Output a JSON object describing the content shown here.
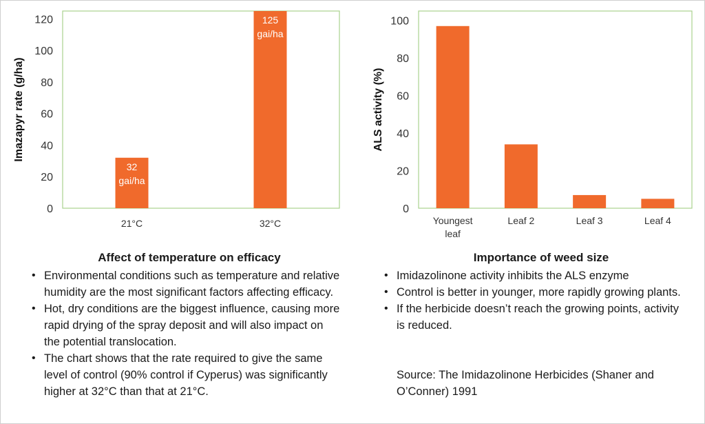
{
  "chart_data": [
    {
      "type": "bar",
      "categories": [
        "21°C",
        "32°C"
      ],
      "values": [
        32,
        125
      ],
      "data_labels": [
        [
          "32",
          "gai/ha"
        ],
        [
          "125",
          "gai/ha"
        ]
      ],
      "ylabel": "Imazapyr rate (g/ha)",
      "ylim": [
        0,
        125
      ],
      "yticks": [
        0,
        20,
        40,
        60,
        80,
        100,
        120
      ],
      "bar_color": "#f06a2c",
      "frame_color": "#a9d18e",
      "grid": false
    },
    {
      "type": "bar",
      "categories": [
        [
          "Youngest",
          "leaf"
        ],
        [
          "Leaf 2"
        ],
        [
          "Leaf 3"
        ],
        [
          "Leaf 4"
        ]
      ],
      "values": [
        97,
        34,
        7,
        5
      ],
      "ylabel": "ALS activity (%)",
      "ylim": [
        0,
        105
      ],
      "yticks": [
        0,
        20,
        40,
        60,
        80,
        100
      ],
      "bar_color": "#f06a2c",
      "frame_color": "#a9d18e",
      "grid": false
    }
  ],
  "left_panel": {
    "title": "Affect of temperature on efficacy",
    "bullets": [
      "Environmental conditions such as temperature and relative humidity are the most significant factors affecting efficacy.",
      "Hot, dry conditions are the biggest influence, causing more rapid drying of the spray deposit and will also impact on the potential translocation.",
      "The chart shows that the rate required to give the same level of control (90% control if Cyperus) was significantly higher at 32°C than that at 21°C."
    ]
  },
  "right_panel": {
    "title": "Importance of weed size",
    "bullets": [
      "Imidazolinone activity inhibits the ALS enzyme",
      "Control is better in younger, more rapidly growing plants.",
      "If the herbicide doesn’t reach the growing points, activity is reduced."
    ],
    "source": "Source: The Imidazolinone Herbicides (Shaner and O’Conner) 1991"
  }
}
